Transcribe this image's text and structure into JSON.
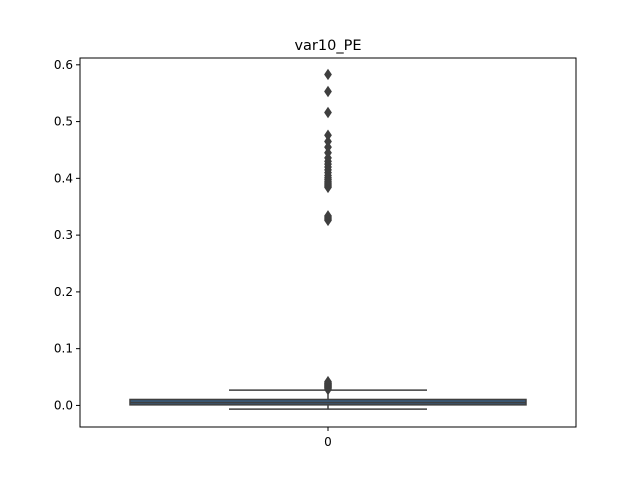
{
  "chart_data": {
    "type": "box",
    "title": "var10_PE",
    "xlabel": "",
    "ylabel": "",
    "categories": [
      "0"
    ],
    "ylim": [
      -0.038,
      0.612
    ],
    "yticks": [
      0.0,
      0.1,
      0.2,
      0.3,
      0.4,
      0.5,
      0.6
    ],
    "ytick_labels": [
      "0.0",
      "0.1",
      "0.2",
      "0.3",
      "0.4",
      "0.5",
      "0.6"
    ],
    "grid": false,
    "box": {
      "q1": 0.001,
      "median": 0.005,
      "q3": 0.0105,
      "whisker_low": -0.0065,
      "whisker_high": 0.027
    },
    "outliers": [
      0.028,
      0.03,
      0.031,
      0.032,
      0.033,
      0.034,
      0.035,
      0.036,
      0.037,
      0.038,
      0.039,
      0.04,
      0.042,
      0.326,
      0.328,
      0.33,
      0.332,
      0.334,
      0.384,
      0.386,
      0.388,
      0.39,
      0.392,
      0.395,
      0.398,
      0.401,
      0.405,
      0.41,
      0.415,
      0.42,
      0.425,
      0.43,
      0.436,
      0.445,
      0.455,
      0.465,
      0.476,
      0.516,
      0.553,
      0.583
    ],
    "colors": {
      "box_fill": "#3a5a7a",
      "lines": "#3f3f3f",
      "axes": "#000000"
    }
  }
}
